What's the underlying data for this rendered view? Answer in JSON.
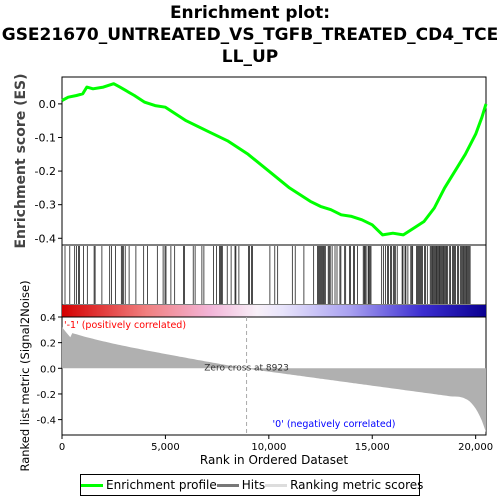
{
  "chart_data": {
    "type": "line",
    "title_lines": [
      "Enrichment plot:",
      "GSE21670_UNTREATED_VS_TGFB_TREATED_CD4_TCE",
      "LL_UP"
    ],
    "es_ylabel": "Enrichment score (ES)",
    "metric_ylabel": "Ranked list metric (Signal2Noise)",
    "xlabel": "Rank in Ordered Dataset",
    "x_range": [
      0,
      20500
    ],
    "x_ticks": [
      0,
      5000,
      10000,
      15000,
      20000
    ],
    "x_tick_labels": [
      "0",
      "5,000",
      "10,000",
      "15,000",
      "20,000"
    ],
    "es_ylim": [
      -0.42,
      0.08
    ],
    "es_ticks": [
      0.0,
      -0.1,
      -0.2,
      -0.3,
      -0.4
    ],
    "es_tick_labels": [
      "0.0",
      "-0.1",
      "-0.2",
      "-0.3",
      "-0.4"
    ],
    "metric_ylim": [
      -0.52,
      0.4
    ],
    "metric_ticks": [
      0.4,
      0.2,
      0.0,
      -0.2,
      -0.4
    ],
    "metric_tick_labels": [
      "0.4",
      "0.2",
      "0.0",
      "-0.2",
      "-0.4"
    ],
    "es_profile": {
      "x": [
        0,
        300,
        700,
        1000,
        1200,
        1500,
        2000,
        2500,
        2800,
        3500,
        4000,
        4500,
        5000,
        6000,
        7000,
        8000,
        9000,
        10000,
        11000,
        12000,
        12500,
        13000,
        13500,
        14000,
        14500,
        15000,
        15500,
        16000,
        16500,
        17000,
        17500,
        18000,
        18500,
        19000,
        19500,
        20000,
        20300,
        20500
      ],
      "y": [
        0.01,
        0.02,
        0.025,
        0.03,
        0.05,
        0.045,
        0.05,
        0.06,
        0.05,
        0.025,
        0.005,
        -0.005,
        -0.01,
        -0.05,
        -0.08,
        -0.11,
        -0.15,
        -0.2,
        -0.25,
        -0.29,
        -0.305,
        -0.315,
        -0.33,
        -0.335,
        -0.345,
        -0.36,
        -0.39,
        -0.385,
        -0.39,
        -0.37,
        -0.35,
        -0.31,
        -0.25,
        -0.2,
        -0.15,
        -0.09,
        -0.04,
        0.0
      ]
    },
    "zero_cross_label": "Zero cross at 8923",
    "zero_cross_x": 8923,
    "pos_corr_label": "'-1' (positively correlated)",
    "neg_corr_label": "'0' (negatively correlated)",
    "legend": [
      "Enrichment profile",
      "Hits",
      "Ranking metric scores"
    ],
    "colors": {
      "profile": "#00ff00",
      "hits": "#000000",
      "metric_fill": "#b0b0b0",
      "pos_label": "#ff0000",
      "neg_label": "#0000ff",
      "zero_line": "#aaaaaa"
    }
  }
}
